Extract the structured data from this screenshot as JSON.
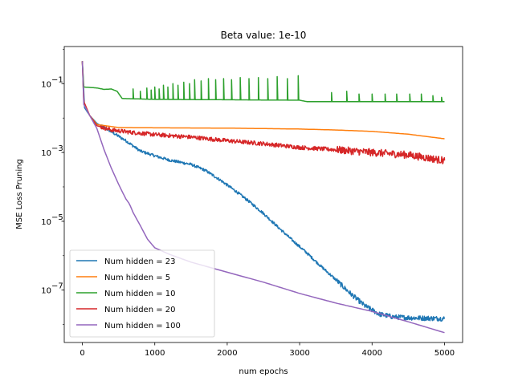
{
  "chart_data": {
    "type": "line",
    "title": "Beta value: 1e-10",
    "xlabel": "num epochs",
    "ylabel": "MSE Loss Pruning",
    "xlim": [
      -250,
      5250
    ],
    "ylim": [
      3e-09,
      1.2
    ],
    "yscale": "log",
    "grid": false,
    "legend_position": "lower-left",
    "x_ticks": [
      0,
      1000,
      2000,
      3000,
      4000,
      5000
    ],
    "x_tick_labels": [
      "0",
      "1000",
      "2000",
      "3000",
      "4000",
      "5000"
    ],
    "y_ticks": [
      1e-07,
      1e-05,
      0.001,
      0.1
    ],
    "y_tick_labels": [
      {
        "base": "10",
        "exp": "−7"
      },
      {
        "base": "10",
        "exp": "−5"
      },
      {
        "base": "10",
        "exp": "−3"
      },
      {
        "base": "10",
        "exp": "−1"
      }
    ],
    "series": [
      {
        "name": "Num hidden = 23",
        "color": "#1f77b4",
        "noise": 0.04,
        "points": [
          [
            0,
            0.45
          ],
          [
            30,
            0.02
          ],
          [
            100,
            0.012
          ],
          [
            200,
            0.007
          ],
          [
            400,
            0.004
          ],
          [
            600,
            0.0022
          ],
          [
            800,
            0.0011
          ],
          [
            1000,
            0.0008
          ],
          [
            1200,
            0.0006
          ],
          [
            1500,
            0.00045
          ],
          [
            1700,
            0.0003
          ],
          [
            1900,
            0.00016
          ],
          [
            2100,
            8e-05
          ],
          [
            2300,
            3.8e-05
          ],
          [
            2500,
            1.7e-05
          ],
          [
            2700,
            6.8e-06
          ],
          [
            2900,
            2.8e-06
          ],
          [
            3100,
            1.2e-06
          ],
          [
            3300,
            4.8e-07
          ],
          [
            3500,
            2e-07
          ],
          [
            3700,
            8e-08
          ],
          [
            3900,
            3.5e-08
          ],
          [
            4100,
            2e-08
          ],
          [
            4300,
            1.65e-08
          ],
          [
            4600,
            1.55e-08
          ],
          [
            5000,
            1.48e-08
          ]
        ]
      },
      {
        "name": "Num hidden = 5",
        "color": "#ff7f0e",
        "noise": 0,
        "points": [
          [
            0,
            0.45
          ],
          [
            20,
            0.03
          ],
          [
            100,
            0.012
          ],
          [
            200,
            0.0065
          ],
          [
            500,
            0.0053
          ],
          [
            1000,
            0.0052
          ],
          [
            2000,
            0.0051
          ],
          [
            3000,
            0.0048
          ],
          [
            3500,
            0.0045
          ],
          [
            4000,
            0.0041
          ],
          [
            4500,
            0.0034
          ],
          [
            5000,
            0.0025
          ]
        ]
      },
      {
        "name": "Num hidden = 10",
        "color": "#2ca02c",
        "noise": 0,
        "points": [
          [
            0,
            0.45
          ],
          [
            20,
            0.08
          ],
          [
            200,
            0.075
          ],
          [
            300,
            0.068
          ],
          [
            400,
            0.07
          ],
          [
            480,
            0.06
          ],
          [
            550,
            0.037
          ],
          [
            1000,
            0.035
          ],
          [
            2000,
            0.034
          ],
          [
            3000,
            0.033
          ],
          [
            3100,
            0.03
          ],
          [
            5000,
            0.03
          ]
        ],
        "spikes": [
          [
            700,
            0.07
          ],
          [
            800,
            0.06
          ],
          [
            890,
            0.075
          ],
          [
            950,
            0.065
          ],
          [
            1000,
            0.08
          ],
          [
            1060,
            0.07
          ],
          [
            1120,
            0.09
          ],
          [
            1180,
            0.08
          ],
          [
            1250,
            0.1
          ],
          [
            1320,
            0.09
          ],
          [
            1400,
            0.11
          ],
          [
            1480,
            0.1
          ],
          [
            1550,
            0.13
          ],
          [
            1640,
            0.12
          ],
          [
            1740,
            0.14
          ],
          [
            1840,
            0.13
          ],
          [
            1950,
            0.14
          ],
          [
            2060,
            0.13
          ],
          [
            2180,
            0.15
          ],
          [
            2300,
            0.14
          ],
          [
            2430,
            0.15
          ],
          [
            2560,
            0.14
          ],
          [
            2690,
            0.16
          ],
          [
            2830,
            0.14
          ],
          [
            2980,
            0.17
          ],
          [
            3440,
            0.055
          ],
          [
            3650,
            0.06
          ],
          [
            3820,
            0.05
          ],
          [
            4000,
            0.05
          ],
          [
            4180,
            0.05
          ],
          [
            4340,
            0.05
          ],
          [
            4520,
            0.05
          ],
          [
            4680,
            0.05
          ],
          [
            4840,
            0.045
          ],
          [
            4960,
            0.04
          ]
        ]
      },
      {
        "name": "Num hidden = 20",
        "color": "#d62728",
        "noise": 0.06,
        "points": [
          [
            0,
            0.45
          ],
          [
            20,
            0.03
          ],
          [
            100,
            0.012
          ],
          [
            200,
            0.006
          ],
          [
            400,
            0.0045
          ],
          [
            700,
            0.0038
          ],
          [
            1000,
            0.0033
          ],
          [
            1500,
            0.0028
          ],
          [
            2000,
            0.0022
          ],
          [
            2500,
            0.0018
          ],
          [
            3000,
            0.0014
          ],
          [
            3500,
            0.0012
          ],
          [
            4000,
            0.001
          ],
          [
            4500,
            0.00085
          ],
          [
            5000,
            0.00058
          ]
        ]
      },
      {
        "name": "Num hidden = 100",
        "color": "#9467bd",
        "noise": 0,
        "points": [
          [
            0,
            0.45
          ],
          [
            20,
            0.025
          ],
          [
            100,
            0.012
          ],
          [
            200,
            0.005
          ],
          [
            300,
            0.0012
          ],
          [
            400,
            0.00035
          ],
          [
            500,
            0.00012
          ],
          [
            600,
            4.5e-05
          ],
          [
            650,
            3.2e-05
          ],
          [
            700,
            1.8e-05
          ],
          [
            800,
            7.5e-06
          ],
          [
            900,
            3e-06
          ],
          [
            1000,
            1.7e-06
          ],
          [
            1200,
            1.1e-06
          ],
          [
            1500,
            6.5e-07
          ],
          [
            2000,
            3.3e-07
          ],
          [
            2500,
            1.7e-07
          ],
          [
            3000,
            8e-08
          ],
          [
            3500,
            4.2e-08
          ],
          [
            4000,
            2.4e-08
          ],
          [
            4500,
            1.2e-08
          ],
          [
            5000,
            5.8e-09
          ]
        ]
      }
    ]
  }
}
